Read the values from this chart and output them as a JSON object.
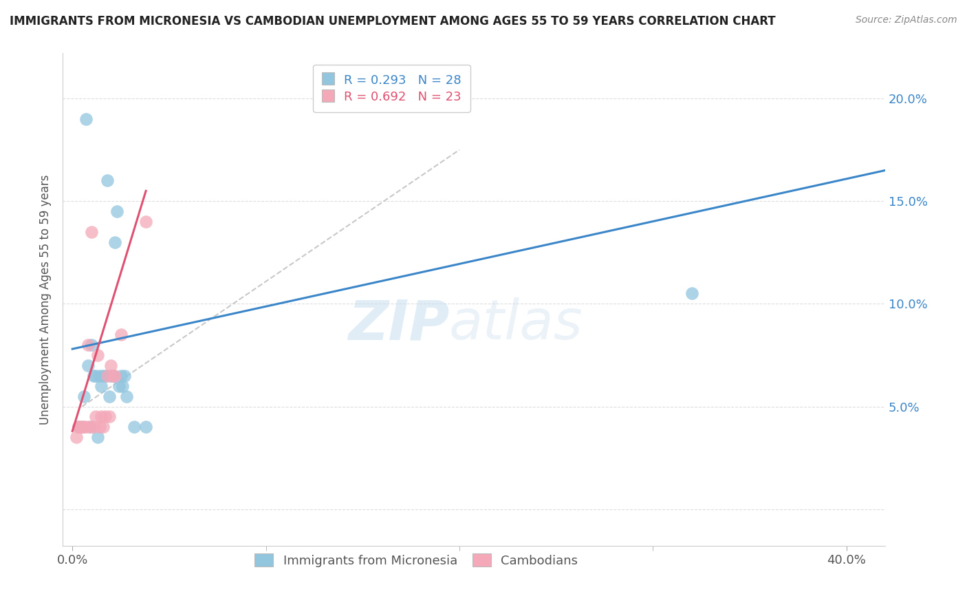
{
  "title": "IMMIGRANTS FROM MICRONESIA VS CAMBODIAN UNEMPLOYMENT AMONG AGES 55 TO 59 YEARS CORRELATION CHART",
  "source": "Source: ZipAtlas.com",
  "ylabel_label": "Unemployment Among Ages 55 to 59 years",
  "xlim": [
    -0.005,
    0.42
  ],
  "ylim": [
    -0.018,
    0.222
  ],
  "legend1_label": "R = 0.293   N = 28",
  "legend2_label": "R = 0.692   N = 23",
  "legend_series1": "Immigrants from Micronesia",
  "legend_series2": "Cambodians",
  "blue_color": "#92c5de",
  "pink_color": "#f4a8b8",
  "trendline_blue": "#3a86c8",
  "trendline_pink": "#e05070",
  "trendline_dashed_color": "#c8c8c8",
  "watermark_zip": "ZIP",
  "watermark_atlas": "atlas",
  "blue_scatter_x": [
    0.003,
    0.005,
    0.006,
    0.007,
    0.008,
    0.009,
    0.01,
    0.011,
    0.012,
    0.013,
    0.014,
    0.015,
    0.016,
    0.017,
    0.018,
    0.019,
    0.02,
    0.021,
    0.022,
    0.023,
    0.024,
    0.025,
    0.026,
    0.027,
    0.028,
    0.032,
    0.038,
    0.32
  ],
  "blue_scatter_y": [
    0.04,
    0.04,
    0.055,
    0.19,
    0.07,
    0.04,
    0.08,
    0.065,
    0.065,
    0.035,
    0.065,
    0.06,
    0.065,
    0.065,
    0.16,
    0.055,
    0.065,
    0.065,
    0.13,
    0.145,
    0.06,
    0.065,
    0.06,
    0.065,
    0.055,
    0.04,
    0.04,
    0.105
  ],
  "pink_scatter_x": [
    0.002,
    0.003,
    0.004,
    0.005,
    0.006,
    0.007,
    0.008,
    0.009,
    0.01,
    0.011,
    0.012,
    0.013,
    0.014,
    0.015,
    0.016,
    0.017,
    0.018,
    0.019,
    0.02,
    0.021,
    0.022,
    0.025,
    0.038
  ],
  "pink_scatter_y": [
    0.035,
    0.04,
    0.04,
    0.04,
    0.04,
    0.04,
    0.08,
    0.04,
    0.135,
    0.04,
    0.045,
    0.075,
    0.04,
    0.045,
    0.04,
    0.045,
    0.065,
    0.045,
    0.07,
    0.065,
    0.065,
    0.085,
    0.14
  ],
  "blue_trend_x": [
    0.0,
    0.42
  ],
  "blue_trend_y": [
    0.078,
    0.165
  ],
  "pink_trend_x": [
    0.0,
    0.038
  ],
  "pink_trend_y": [
    0.038,
    0.155
  ],
  "dashed_trend_x": [
    0.005,
    0.2
  ],
  "dashed_trend_y": [
    0.05,
    0.175
  ],
  "xtick_positions": [
    0.0,
    0.4
  ],
  "xtick_labels": [
    "0.0%",
    "40.0%"
  ],
  "ytick_positions": [
    0.0,
    0.05,
    0.1,
    0.15,
    0.2
  ],
  "ytick_labels": [
    "",
    "5.0%",
    "10.0%",
    "15.0%",
    "20.0%"
  ]
}
